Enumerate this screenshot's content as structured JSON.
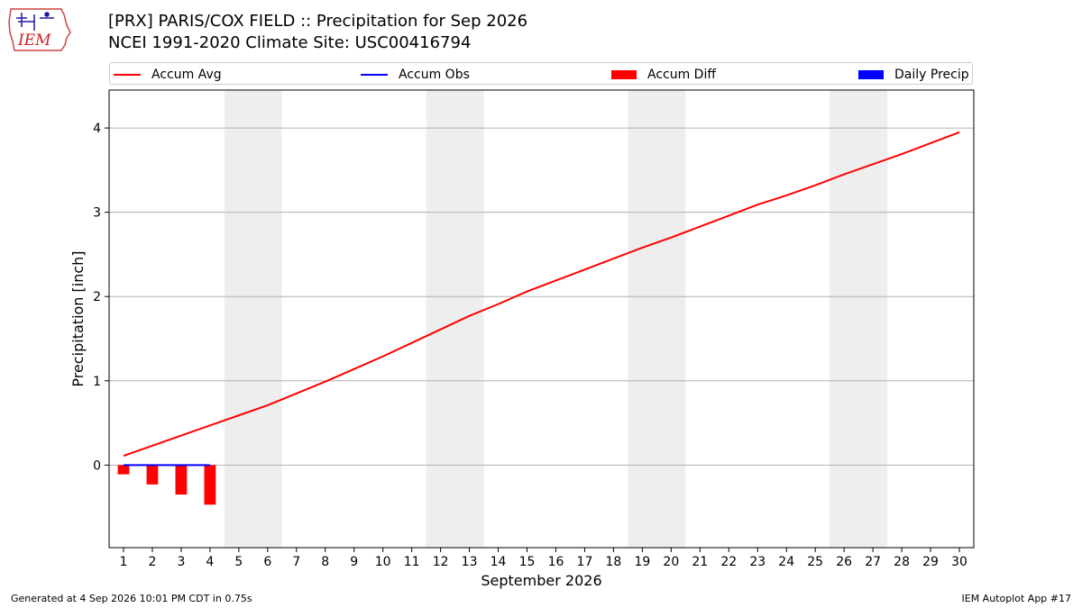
{
  "title": {
    "line1": "[PRX] PARIS/COX FIELD :: Precipitation for Sep 2026",
    "line2": "NCEI 1991-2020 Climate Site: USC00416794"
  },
  "logo": {
    "text": "IEM",
    "icon": "iem-iowa-logo-icon"
  },
  "legend": [
    {
      "label": "Accum Avg",
      "kind": "line",
      "color": "#ff0000"
    },
    {
      "label": "Accum Obs",
      "kind": "line",
      "color": "#0000ff"
    },
    {
      "label": "Accum Diff",
      "kind": "box",
      "color": "#ff0000"
    },
    {
      "label": "Daily Precip",
      "kind": "box",
      "color": "#0000ff"
    }
  ],
  "chart_data": {
    "type": "line",
    "xlabel": "September 2026",
    "ylabel": "Precipitation [inch]",
    "xlim": [
      0.5,
      30.5
    ],
    "ylim": [
      -0.98,
      4.45
    ],
    "yticks": [
      0,
      1,
      2,
      3,
      4
    ],
    "xticks": [
      1,
      2,
      3,
      4,
      5,
      6,
      7,
      8,
      9,
      10,
      11,
      12,
      13,
      14,
      15,
      16,
      17,
      18,
      19,
      20,
      21,
      22,
      23,
      24,
      25,
      26,
      27,
      28,
      29,
      30
    ],
    "grid": "horizontal",
    "weekend_shading": [
      [
        4.5,
        6.5
      ],
      [
        11.5,
        13.5
      ],
      [
        18.5,
        20.5
      ],
      [
        25.5,
        27.5
      ]
    ],
    "series": [
      {
        "name": "Accum Avg",
        "kind": "line",
        "color": "#ff0000",
        "x": [
          1,
          2,
          3,
          4,
          5,
          6,
          7,
          8,
          9,
          10,
          11,
          12,
          13,
          14,
          15,
          16,
          17,
          18,
          19,
          20,
          21,
          22,
          23,
          24,
          25,
          26,
          27,
          28,
          29,
          30
        ],
        "values": [
          0.11,
          0.23,
          0.35,
          0.47,
          0.59,
          0.71,
          0.85,
          0.99,
          1.14,
          1.29,
          1.45,
          1.61,
          1.77,
          1.91,
          2.06,
          2.19,
          2.32,
          2.45,
          2.58,
          2.7,
          2.83,
          2.96,
          3.09,
          3.2,
          3.32,
          3.45,
          3.57,
          3.69,
          3.82,
          3.95
        ]
      },
      {
        "name": "Accum Obs",
        "kind": "line",
        "color": "#0000ff",
        "x": [
          1,
          2,
          3,
          4
        ],
        "values": [
          0,
          0,
          0,
          0
        ]
      },
      {
        "name": "Accum Diff",
        "kind": "bar",
        "color": "#ff0000",
        "x": [
          1,
          2,
          3,
          4
        ],
        "values": [
          -0.11,
          -0.23,
          -0.35,
          -0.47
        ]
      },
      {
        "name": "Daily Precip",
        "kind": "bar",
        "color": "#0000ff",
        "x": [
          1,
          2,
          3,
          4
        ],
        "values": [
          0,
          0,
          0,
          0
        ]
      }
    ]
  },
  "footer": {
    "left": "Generated at 4 Sep 2026 10:01 PM CDT in 0.75s",
    "right": "IEM Autoplot App #17"
  }
}
